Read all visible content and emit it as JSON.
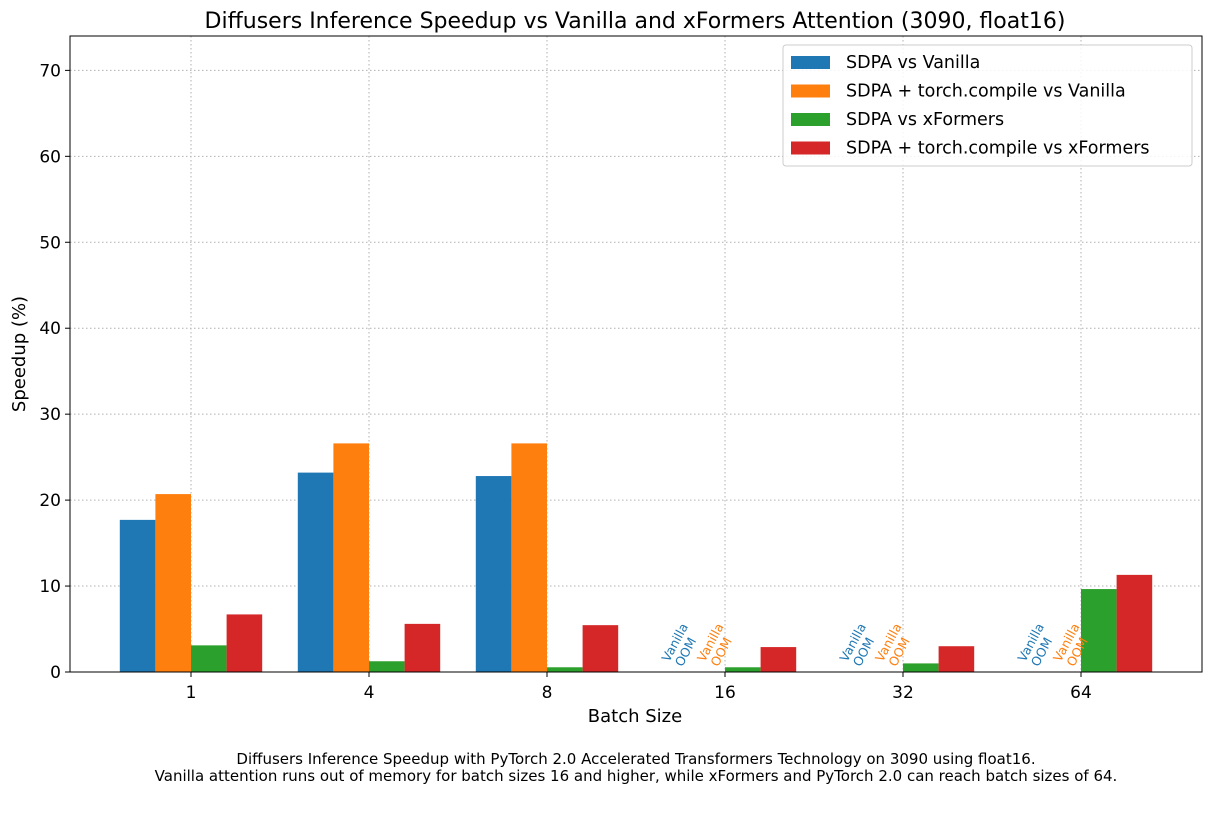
{
  "chart_data": {
    "type": "bar",
    "title": "Diffusers Inference Speedup vs Vanilla and xFormers Attention (3090, float16)",
    "xlabel": "Batch Size",
    "ylabel": "Speedup (%)",
    "categories": [
      "1",
      "4",
      "8",
      "16",
      "32",
      "64"
    ],
    "ylim": [
      0,
      74
    ],
    "yticks": [
      0,
      10,
      20,
      30,
      40,
      50,
      60,
      70
    ],
    "grid": true,
    "legend_position": "top-right",
    "series": [
      {
        "name": "SDPA vs Vanilla",
        "color": "#1f77b4",
        "values": [
          17.7,
          23.2,
          22.8,
          null,
          null,
          null
        ]
      },
      {
        "name": "SDPA + torch.compile vs Vanilla",
        "color": "#ff7f0e",
        "values": [
          20.7,
          26.6,
          26.6,
          null,
          null,
          null
        ]
      },
      {
        "name": "SDPA vs xFormers",
        "color": "#2ca02c",
        "values": [
          3.1,
          1.25,
          0.55,
          0.55,
          1.0,
          9.65
        ]
      },
      {
        "name": "SDPA + torch.compile vs xFormers",
        "color": "#d62728",
        "values": [
          6.7,
          5.6,
          5.45,
          2.9,
          3.0,
          11.3
        ]
      }
    ],
    "annotations": {
      "oom_line1": "Vanilla",
      "oom_line2": "OOM",
      "oom_categories": [
        "16",
        "32",
        "64"
      ],
      "oom_series": [
        0,
        1
      ]
    },
    "caption": [
      "Diffusers Inference Speedup with PyTorch 2.0 Accelerated Transformers Technology on 3090 using float16.",
      "Vanilla attention runs out of memory for batch sizes 16 and higher, while xFormers and PyTorch 2.0 can reach batch sizes of 64."
    ]
  }
}
